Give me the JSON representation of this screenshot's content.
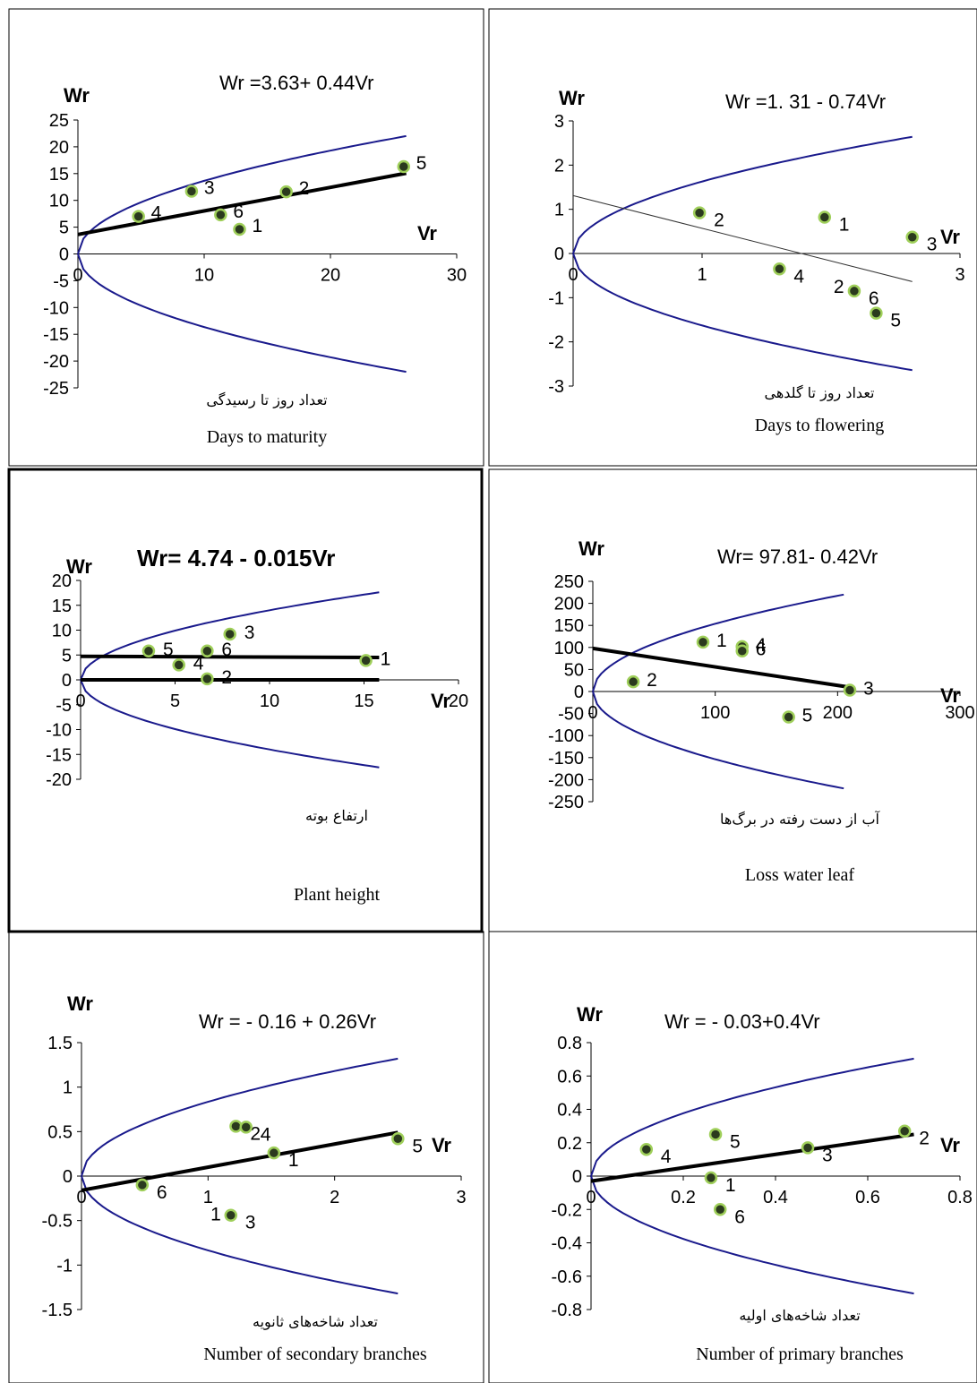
{
  "chart_data": [
    {
      "type": "scatter",
      "title": "Wr =3.63+ 0.44Vr",
      "xlabel": "Vr",
      "ylabel": "Wr",
      "caption_fa": "تعداد روز تا رسیدگی",
      "caption_en": "Days to maturity",
      "xlim": [
        0,
        30
      ],
      "ylim": [
        -25,
        25
      ],
      "xticks": [
        0,
        10,
        20,
        30
      ],
      "yticks": [
        -25,
        -20,
        -15,
        -10,
        -5,
        0,
        5,
        10,
        15,
        20,
        25
      ],
      "points": [
        {
          "label": "1",
          "x": 12.8,
          "y": 4.6
        },
        {
          "label": "2",
          "x": 16.5,
          "y": 11.6
        },
        {
          "label": "3",
          "x": 9.0,
          "y": 11.7
        },
        {
          "label": "4",
          "x": 4.8,
          "y": 7.0
        },
        {
          "label": "5",
          "x": 25.8,
          "y": 16.3
        },
        {
          "label": "6",
          "x": 11.3,
          "y": 7.3
        }
      ],
      "regression": {
        "intercept": 3.63,
        "slope": 0.44,
        "x_range": [
          0,
          26
        ]
      },
      "parabola": {
        "x_max": 26
      }
    },
    {
      "type": "scatter",
      "title": "Wr =1. 31 - 0.74Vr",
      "xlabel": "Vr",
      "ylabel": "Wr",
      "caption_fa": "تعداد روز تا گلدهی",
      "caption_en": "Days to flowering",
      "xlim": [
        0,
        3
      ],
      "ylim": [
        -3,
        3
      ],
      "xticks": [
        0,
        1,
        3
      ],
      "yticks": [
        -3,
        -2,
        -1,
        0,
        1,
        2,
        3
      ],
      "points": [
        {
          "label": "1",
          "x": 1.95,
          "y": 0.82
        },
        {
          "label": "2",
          "x": 0.98,
          "y": 0.92
        },
        {
          "label": "3",
          "x": 2.63,
          "y": 0.37
        },
        {
          "label": "4",
          "x": 1.6,
          "y": -0.35
        },
        {
          "label": "5",
          "x": 2.35,
          "y": -1.35
        },
        {
          "label": "6",
          "x": 2.18,
          "y": -0.85
        }
      ],
      "extra_labels": [
        {
          "text": "2",
          "x": 2.02,
          "y": -0.75
        }
      ],
      "regression": {
        "intercept": 1.31,
        "slope": -0.74,
        "x_range": [
          0,
          2.63
        ]
      },
      "parabola": {
        "x_max": 2.63
      }
    },
    {
      "type": "scatter",
      "title": "Wr= 4.74 - 0.015Vr",
      "xlabel": "Vr",
      "ylabel": "Wr",
      "caption_fa": "ارتفاع بوته",
      "caption_en": "Plant height",
      "xlim": [
        0,
        20
      ],
      "ylim": [
        -20,
        20
      ],
      "xticks": [
        0,
        5,
        10,
        15,
        20
      ],
      "yticks": [
        -20,
        -15,
        -10,
        -5,
        0,
        5,
        10,
        15,
        20
      ],
      "points": [
        {
          "label": "1",
          "x": 15.1,
          "y": 3.9
        },
        {
          "label": "2",
          "x": 6.7,
          "y": 0.2
        },
        {
          "label": "3",
          "x": 7.9,
          "y": 9.2
        },
        {
          "label": "4",
          "x": 5.2,
          "y": 3.0
        },
        {
          "label": "5",
          "x": 3.6,
          "y": 5.8
        },
        {
          "label": "6",
          "x": 6.7,
          "y": 5.8
        }
      ],
      "regression": {
        "intercept": 4.74,
        "slope": -0.015,
        "x_range": [
          0,
          15.8
        ]
      },
      "extra_line_y": 0,
      "parabola": {
        "x_max": 15.8
      }
    },
    {
      "type": "scatter",
      "title": "Wr= 97.81- 0.42Vr",
      "xlabel": "Vr",
      "ylabel": "Wr",
      "caption_fa": "آب از دست رفته در برگ‌ها",
      "caption_en": "Loss water leaf",
      "xlim": [
        0,
        300
      ],
      "ylim": [
        -250,
        250
      ],
      "xticks": [
        0,
        100,
        200,
        300
      ],
      "yticks": [
        -250,
        -200,
        -150,
        -100,
        -50,
        0,
        50,
        100,
        150,
        200,
        250
      ],
      "points": [
        {
          "label": "1",
          "x": 90,
          "y": 112
        },
        {
          "label": "2",
          "x": 33,
          "y": 22
        },
        {
          "label": "3",
          "x": 210,
          "y": 3
        },
        {
          "label": "4",
          "x": 122,
          "y": 102
        },
        {
          "label": "5",
          "x": 160,
          "y": -58
        },
        {
          "label": "6",
          "x": 122,
          "y": 92
        }
      ],
      "regression": {
        "intercept": 97.81,
        "slope": -0.42,
        "x_range": [
          0,
          210
        ]
      },
      "parabola": {
        "x_max": 205
      }
    },
    {
      "type": "scatter",
      "title": "Wr = - 0.16 + 0.26Vr",
      "xlabel": "Vr",
      "ylabel": "Wr",
      "caption_fa": "تعداد شاخه‌های ثانویه",
      "caption_en": "Number of secondary branches",
      "xlim": [
        0,
        3
      ],
      "ylim": [
        -1.5,
        1.5
      ],
      "xticks": [
        0,
        1,
        2,
        3
      ],
      "yticks": [
        -1.5,
        -1,
        -0.5,
        0,
        0.5,
        1,
        1.5
      ],
      "points": [
        {
          "label": "1",
          "x": 1.52,
          "y": 0.26
        },
        {
          "label": "2",
          "x": 1.22,
          "y": 0.56
        },
        {
          "label": "3",
          "x": 1.18,
          "y": -0.44
        },
        {
          "label": "4",
          "x": 1.3,
          "y": 0.55
        },
        {
          "label": "5",
          "x": 2.5,
          "y": 0.42
        },
        {
          "label": "6",
          "x": 0.48,
          "y": -0.1
        }
      ],
      "extra_labels": [
        {
          "text": "1",
          "x": 1.02,
          "y": -0.43
        }
      ],
      "regression": {
        "intercept": -0.16,
        "slope": 0.26,
        "x_range": [
          0,
          2.5
        ]
      },
      "parabola": {
        "x_max": 2.5
      }
    },
    {
      "type": "scatter",
      "title": "Wr = - 0.03+0.4Vr",
      "xlabel": "Vr",
      "ylabel": "Wr",
      "caption_fa": "تعداد شاخه‌های اولیه",
      "caption_en": "Number of primary branches",
      "xlim": [
        0,
        0.8
      ],
      "ylim": [
        -0.8,
        0.8
      ],
      "xticks": [
        0,
        0.2,
        0.4,
        0.6,
        0.8
      ],
      "yticks": [
        -0.8,
        -0.6,
        -0.4,
        -0.2,
        0,
        0.2,
        0.4,
        0.6,
        0.8
      ],
      "points": [
        {
          "label": "1",
          "x": 0.26,
          "y": -0.01
        },
        {
          "label": "2",
          "x": 0.68,
          "y": 0.27
        },
        {
          "label": "3",
          "x": 0.47,
          "y": 0.17
        },
        {
          "label": "4",
          "x": 0.12,
          "y": 0.16
        },
        {
          "label": "5",
          "x": 0.27,
          "y": 0.25
        },
        {
          "label": "6",
          "x": 0.28,
          "y": -0.2
        }
      ],
      "regression": {
        "intercept": -0.03,
        "slope": 0.4,
        "x_range": [
          0,
          0.7
        ]
      },
      "parabola": {
        "x_max": 0.7
      }
    }
  ]
}
